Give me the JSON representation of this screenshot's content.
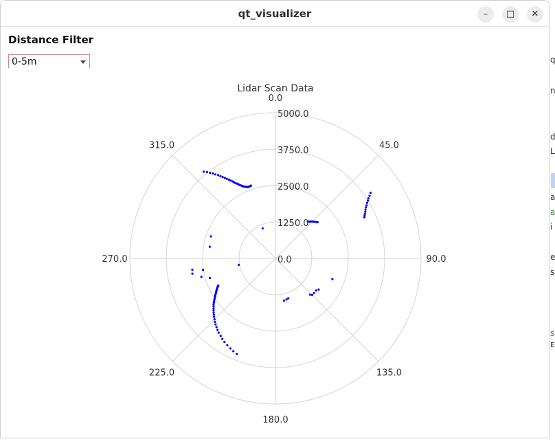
{
  "window": {
    "title": "qt_visualizer"
  },
  "controls": {
    "filter_label": "Distance Filter",
    "filter_value": "0-5m",
    "min_icon": "minimize-icon",
    "max_icon": "maximize-icon",
    "close_icon": "close-icon"
  },
  "background_fragments": [
    "q",
    "n",
    "d",
    "L",
    "a",
    "a",
    "i",
    "e",
    "s",
    "s",
    "E"
  ],
  "chart_data": {
    "type": "scatter",
    "projection": "polar",
    "title": "Lidar Scan Data",
    "angle_ticks": [
      "0.0",
      "45.0",
      "90.0",
      "135.0",
      "180.0",
      "225.0",
      "270.0",
      "315.0"
    ],
    "radial_ticks": [
      "0.0",
      "1250.0",
      "2500.0",
      "3750.0",
      "5000.0"
    ],
    "rmax": 5000,
    "angle_direction": "clockwise",
    "angle_zero": "top",
    "grid": true,
    "point_color": "#0000ff",
    "series": [
      {
        "theta": [
          320.4,
          321.6,
          322.6,
          323.6,
          324.4,
          325.4,
          326.2,
          327.0,
          327.8,
          328.6,
          329.4,
          330.0,
          330.8,
          331.4,
          332.0,
          332.8,
          333.4,
          334.0,
          334.6,
          335.2,
          335.8,
          336.4,
          337.0,
          337.6,
          338.2,
          338.8,
          339.2,
          339.8,
          340.4,
          340.8,
          341.4,
          41.4,
          42.4,
          43.6,
          44.6,
          45.8,
          47.0,
          48.4,
          49.4,
          55.4,
          56.4,
          57.2,
          58.0,
          58.8,
          59.8,
          60.6,
          61.6,
          62.6,
          63.6,
          64.4,
          65.2,
          125.8,
          128.4,
          132.0,
          136.4,
          135.0,
          162.2,
          165.0,
          168.6,
          202.0,
          204.4,
          206.6,
          209.0,
          211.4,
          213.4,
          215.2,
          217.4,
          219.0,
          220.6,
          222.2,
          223.6,
          225.0,
          226.4,
          227.6,
          228.8,
          230.0,
          231.0,
          232.2,
          233.2,
          234.2,
          235.0,
          236.0,
          236.8,
          237.8,
          238.6,
          239.4,
          240.2,
          241.0,
          241.8,
          242.6,
          243.4,
          244.0,
          244.6,
          110.0,
          253.4,
          256.0,
          259.6,
          261.0,
          262.2,
          260.0,
          280.0,
          288.8,
          337.0
        ],
        "r": [
          3860,
          3780,
          3695,
          3620,
          3545,
          3470,
          3395,
          3330,
          3260,
          3200,
          3140,
          3085,
          3025,
          2975,
          2925,
          2885,
          2845,
          2805,
          2770,
          2740,
          2710,
          2690,
          2670,
          2655,
          2640,
          2625,
          2625,
          2625,
          2625,
          2625,
          2635,
          1685,
          1710,
          1745,
          1780,
          1810,
          1840,
          1880,
          1905,
          3965,
          3880,
          3800,
          3740,
          3680,
          3620,
          3565,
          3515,
          3475,
          3430,
          3395,
          3365,
          1830,
          1780,
          1780,
          1720,
          1780,
          1440,
          1460,
          1480,
          3540,
          3500,
          3455,
          3410,
          3360,
          3310,
          3260,
          3210,
          3160,
          3110,
          3060,
          3010,
          2960,
          2910,
          2865,
          2820,
          2775,
          2730,
          2690,
          2650,
          2610,
          2570,
          2530,
          2490,
          2450,
          2420,
          2380,
          2350,
          2320,
          2290,
          2260,
          2230,
          2200,
          2175,
          2080,
          2350,
          2620,
          2900,
          2520,
          2880,
          1280,
          2290,
          2340,
          1120
        ]
      }
    ]
  }
}
